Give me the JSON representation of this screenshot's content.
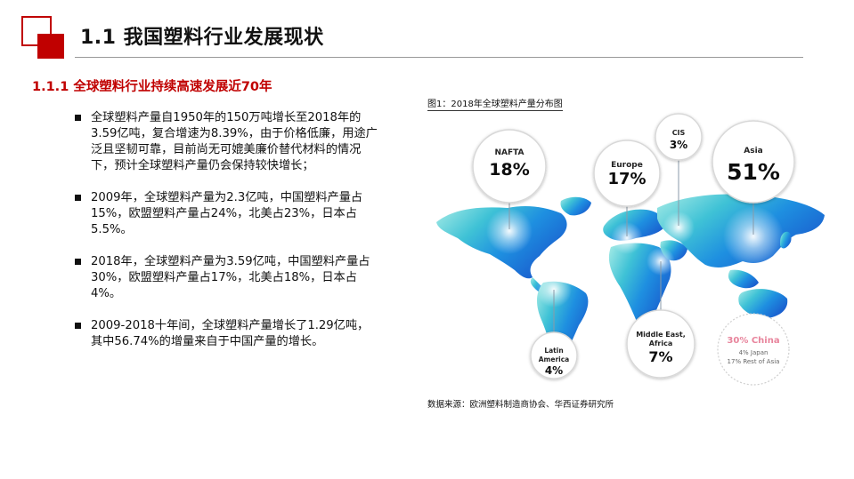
{
  "page": {
    "title": "1.1 我国塑料行业发展现状",
    "section_heading": "1.1.1 全球塑料行业持续高速发展近70年"
  },
  "bullets": [
    "全球塑料产量自1950年的150万吨增长至2018年的3.59亿吨，复合增速为8.39%，由于价格低廉，用途广泛且坚韧可靠，目前尚无可媲美廉价替代材料的情况下，预计全球塑料产量仍会保持较快增长；",
    "2009年，全球塑料产量为2.3亿吨，中国塑料产量占15%，欧盟塑料产量占24%，北美占23%，日本占5.5%。",
    "2018年，全球塑料产量为3.59亿吨，中国塑料产量占30%，欧盟塑料产量占17%，北美占18%，日本占4%。",
    "2009-2018十年间，全球塑料产量增长了1.29亿吨，其中56.74%的增量来自于中国产量的增长。"
  ],
  "figure": {
    "caption": "图1：2018年全球塑料产量分布图",
    "source": "数据来源：欧洲塑料制造商协会、华西证券研究所",
    "regions": [
      {
        "name": "NAFTA",
        "share": "18%"
      },
      {
        "name": "Europe",
        "share": "17%"
      },
      {
        "name": "CIS",
        "share": "3%"
      },
      {
        "name": "Asia",
        "share": "51%"
      },
      {
        "name_line1": "Latin",
        "name_line2": "America",
        "share": "4%"
      },
      {
        "name_line1": "Middle East,",
        "name_line2": "Africa",
        "share": "7%"
      }
    ],
    "asia_breakdown": {
      "china": "30% China",
      "japan": "4% Japan",
      "rest": "17% Rest of Asia"
    }
  },
  "colors": {
    "accent": "#c00000",
    "map_light": "#9fe3df",
    "map_dark": "#1b6fd6",
    "china_label": "#e8849c"
  }
}
